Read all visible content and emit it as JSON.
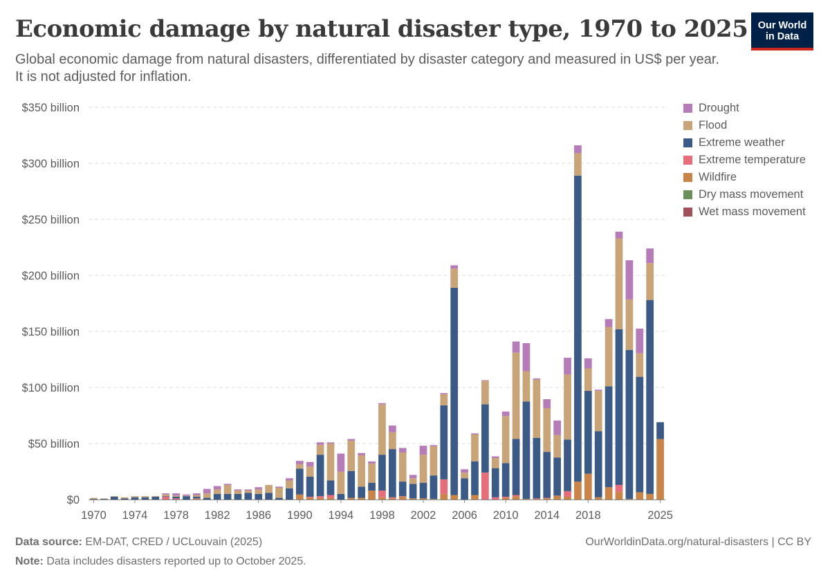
{
  "title": "Economic damage by natural disaster type, 1970 to 2025",
  "subtitle": "Global economic damage from natural disasters, differentiated by disaster category and measured in US$ per year. It is not adjusted for inflation.",
  "logo": {
    "line1": "Our World",
    "line2": "in Data",
    "bg": "#002147",
    "accent": "#ce261e"
  },
  "footer": {
    "source_label": "Data source:",
    "source_text": "EM-DAT, CRED / UCLouvain (2025)",
    "note_label": "Note:",
    "note_text": "Data includes disasters reported up to October 2025.",
    "right_text": "OurWorldinData.org/natural-disasters | CC BY"
  },
  "chart_data": {
    "type": "bar",
    "stacked": true,
    "title": "Economic damage by natural disaster type, 1970 to 2025",
    "xlabel": "",
    "ylabel": "",
    "ylim": [
      0,
      350
    ],
    "y_ticks": [
      0,
      50,
      100,
      150,
      200,
      250,
      300,
      350
    ],
    "y_tick_labels": [
      "$0",
      "$50 billion",
      "$100 billion",
      "$150 billion",
      "$200 billion",
      "$250 billion",
      "$300 billion",
      "$350 billion"
    ],
    "x_ticks": [
      1970,
      1974,
      1978,
      1982,
      1986,
      1990,
      1994,
      1998,
      2002,
      2006,
      2010,
      2014,
      2018,
      2025
    ],
    "grid": "horizontal dashed",
    "legend_position": "right",
    "categories": [
      1970,
      1971,
      1972,
      1973,
      1974,
      1975,
      1976,
      1977,
      1978,
      1979,
      1980,
      1981,
      1982,
      1983,
      1984,
      1985,
      1986,
      1987,
      1988,
      1989,
      1990,
      1991,
      1992,
      1993,
      1994,
      1995,
      1996,
      1997,
      1998,
      1999,
      2000,
      2001,
      2002,
      2003,
      2004,
      2005,
      2006,
      2007,
      2008,
      2009,
      2010,
      2011,
      2012,
      2013,
      2014,
      2015,
      2016,
      2017,
      2018,
      2019,
      2020,
      2021,
      2022,
      2023,
      2024,
      2025
    ],
    "series": [
      {
        "name": "Wet mass movement",
        "color": "#a2559c",
        "values": [
          0,
          0,
          0,
          0,
          0,
          0,
          0,
          0,
          0,
          0,
          0,
          0,
          0,
          0,
          0,
          0,
          0,
          0,
          0,
          0,
          0,
          0,
          0,
          0,
          0,
          0,
          0,
          0,
          0,
          0,
          0,
          0,
          0,
          0,
          0,
          0,
          0,
          0,
          0,
          0,
          0,
          0,
          0,
          0,
          0,
          0,
          0,
          0,
          0,
          0,
          0,
          0,
          0,
          0,
          0,
          0
        ]
      },
      {
        "name": "Dry mass movement",
        "color": "#6d8f5e",
        "values": [
          0,
          0,
          0,
          0,
          0,
          0,
          0,
          0,
          0,
          0,
          0,
          0,
          0,
          0,
          0,
          0,
          0,
          0,
          0,
          0,
          0,
          0,
          0,
          0,
          0,
          0,
          0,
          0,
          0,
          0,
          0,
          0,
          0,
          0,
          0,
          0,
          0,
          0,
          0,
          0,
          0,
          0,
          0,
          0,
          0,
          0,
          0,
          0,
          0,
          0,
          0,
          0,
          0,
          0,
          0,
          0
        ]
      },
      {
        "name": "Wildfire",
        "color": "#c9844a",
        "values": [
          0,
          0,
          0,
          0,
          0,
          0,
          0,
          0,
          0,
          0,
          0.5,
          0,
          0,
          0,
          0,
          0,
          0,
          0,
          0,
          0,
          4.5,
          1.5,
          1.5,
          1.5,
          0,
          1.5,
          1.5,
          8,
          2,
          1,
          2.5,
          1,
          1,
          0.5,
          5,
          4,
          0,
          4,
          0,
          0,
          1.5,
          3,
          0.5,
          0.5,
          1,
          3.5,
          2.5,
          16,
          23,
          2,
          11,
          7,
          0.5,
          6.5,
          5,
          54
        ]
      },
      {
        "name": "Extreme temperature",
        "color": "#e56e7a",
        "values": [
          0,
          0,
          0,
          0,
          0,
          0,
          0,
          2.5,
          1,
          0,
          0.5,
          0,
          0,
          0,
          0,
          0,
          0,
          0,
          0,
          0,
          0,
          1,
          1.5,
          2.5,
          0,
          0,
          0,
          0,
          6,
          1,
          0.5,
          0,
          0,
          0,
          13,
          0,
          0,
          0,
          24,
          2,
          1,
          1,
          0,
          0.5,
          0.5,
          0,
          5,
          0,
          0,
          0,
          0,
          6,
          0,
          0,
          0,
          0
        ]
      },
      {
        "name": "Extreme weather",
        "color": "#3b5a86",
        "values": [
          0.5,
          0.5,
          2.5,
          1,
          2,
          2,
          2.5,
          0.5,
          1.5,
          3,
          1.5,
          1.5,
          5,
          5,
          5,
          6,
          5,
          6,
          1.5,
          10,
          23,
          18,
          37,
          13,
          5,
          24,
          10,
          7,
          32,
          43,
          13,
          13,
          14,
          21,
          66,
          185,
          19,
          30,
          61,
          26,
          30,
          50,
          87,
          54,
          41,
          34,
          46,
          273,
          74,
          59,
          90,
          139,
          133,
          103,
          173,
          15
        ]
      },
      {
        "name": "Flood",
        "color": "#c9a478",
        "values": [
          1,
          0.5,
          0.5,
          1,
          1,
          1,
          0.5,
          1.5,
          1,
          0.5,
          1.5,
          4,
          4,
          8,
          3,
          2,
          4,
          7,
          9,
          7,
          4,
          9,
          9,
          33,
          20,
          27,
          28,
          17,
          45,
          15,
          26,
          5,
          25,
          26,
          10,
          17,
          5,
          24,
          21,
          9,
          42,
          77,
          27,
          52,
          39,
          20,
          58,
          20,
          20,
          36,
          53,
          81,
          45,
          21,
          33,
          0
        ]
      },
      {
        "name": "Drought",
        "color": "#b57cb8",
        "values": [
          0,
          0,
          0,
          0,
          0,
          0,
          0,
          1,
          2,
          1,
          1.5,
          4,
          3,
          1,
          1,
          1,
          2,
          0,
          1,
          2,
          3,
          4,
          2,
          1,
          16,
          1.5,
          2,
          2,
          1,
          6,
          4,
          3,
          8,
          1,
          1,
          3,
          3,
          1,
          0.5,
          1.5,
          4,
          10,
          25,
          1,
          8,
          13,
          15,
          7,
          9,
          1,
          7,
          6,
          35,
          22,
          13,
          0
        ]
      }
    ]
  }
}
